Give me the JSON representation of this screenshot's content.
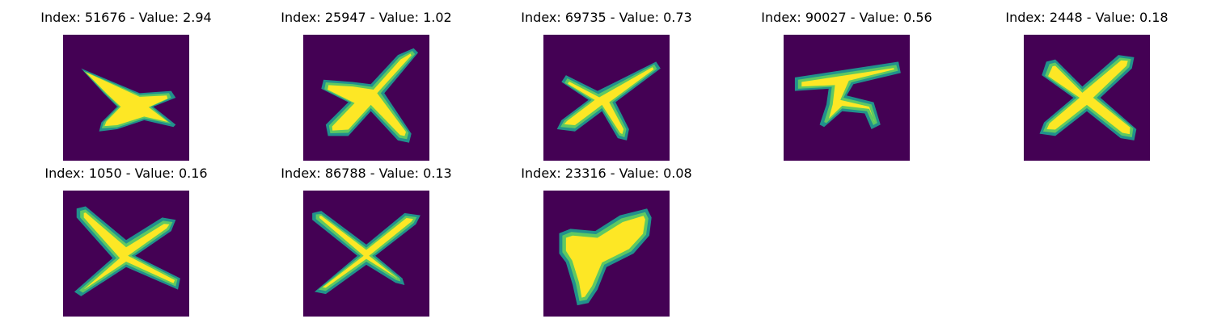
{
  "colors": {
    "background": "#440154",
    "stroke": "#fde725",
    "edge_outer": "#21918c",
    "edge_inner": "#5ec962",
    "page": "#ffffff"
  },
  "tiles": [
    {
      "title": "Index: 51676 - Value: 2.94",
      "index": 51676,
      "value": 2.94,
      "glyph": "x-shape-thick"
    },
    {
      "title": "Index: 25947 - Value: 1.02",
      "index": 25947,
      "value": 1.02,
      "glyph": "x-shape"
    },
    {
      "title": "Index: 69735 - Value: 0.73",
      "index": 69735,
      "value": 0.73,
      "glyph": "x-shape"
    },
    {
      "title": "Index: 90027 - Value: 0.56",
      "index": 90027,
      "value": 0.56,
      "glyph": "pi-like-shape"
    },
    {
      "title": "Index: 2448 - Value: 0.18",
      "index": 2448,
      "value": 0.18,
      "glyph": "x-shape"
    },
    {
      "title": "Index: 1050 - Value: 0.16",
      "index": 1050,
      "value": 0.16,
      "glyph": "x-shape"
    },
    {
      "title": "Index: 86788 - Value: 0.13",
      "index": 86788,
      "value": 0.13,
      "glyph": "x-shape-thin"
    },
    {
      "title": "Index: 23316 - Value: 0.08",
      "index": 23316,
      "value": 0.08,
      "glyph": "blob-shape"
    }
  ]
}
